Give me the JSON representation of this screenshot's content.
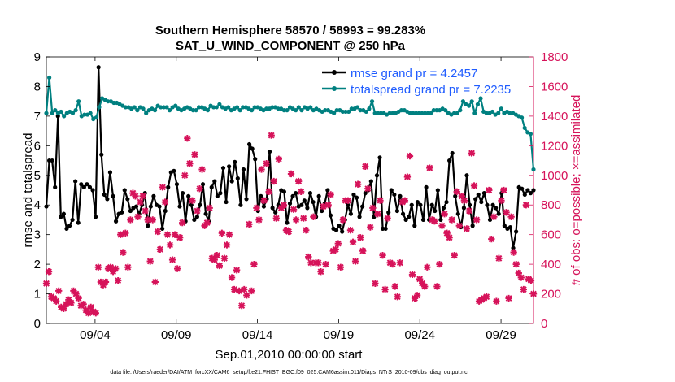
{
  "chart_data": {
    "type": "line",
    "title_line1": "Southern Hemisphere 58570 / 58993 = 99.283%",
    "title_line2": "SAT_U_WIND_COMPONENT @ 250 hPa",
    "xlabel": "Sep.01,2010 00:00:00 start",
    "ylabel_left": "rmse and totalspread",
    "ylabel_right": "# of obs: o=possible; ×=assimilated",
    "xlim": [
      0,
      60
    ],
    "ylim_left": [
      0,
      9
    ],
    "ylim_right": [
      0,
      1800
    ],
    "x_ticks": [
      {
        "x": 6,
        "label": "09/04"
      },
      {
        "x": 16,
        "label": "09/09"
      },
      {
        "x": 26,
        "label": "09/14"
      },
      {
        "x": 36,
        "label": "09/19"
      },
      {
        "x": 46,
        "label": "09/24"
      },
      {
        "x": 56,
        "label": "09/29"
      }
    ],
    "y_ticks_left": [
      "0",
      "1",
      "2",
      "3",
      "4",
      "5",
      "6",
      "7",
      "8",
      "9"
    ],
    "y_ticks_right": [
      "0",
      "200",
      "400",
      "600",
      "800",
      "1000",
      "1200",
      "1400",
      "1600",
      "1800"
    ],
    "grid": false,
    "legend_position": "top-right",
    "colors": {
      "rmse": "#000000",
      "spread": "#008080",
      "obs": "#d6135a",
      "right_axis": "#d6135a",
      "legend_text": "#1f5cff"
    },
    "series": [
      {
        "name": "rmse grand pr = 4.2457",
        "axis": "left",
        "marker": "circle",
        "values": [
          3.95,
          5.5,
          5.5,
          4.6,
          7.0,
          3.6,
          3.7,
          3.2,
          3.3,
          3.5,
          4.8,
          3.4,
          4.7,
          4.6,
          4.7,
          4.6,
          4.5,
          3.6,
          8.65,
          5.7,
          4.35,
          4.2,
          5.1,
          4.3,
          3.45,
          3.7,
          3.75,
          4.5,
          4.2,
          3.8,
          3.9,
          3.95,
          3.7,
          4.0,
          4.4,
          3.3,
          3.95,
          4.3,
          4.0,
          3.95,
          3.2,
          3.8,
          4.6,
          5.1,
          5.15,
          4.7,
          3.95,
          4.4,
          3.45,
          4.3,
          4.0,
          3.5,
          3.6,
          4.0,
          4.7,
          3.7,
          3.45,
          4.6,
          4.8,
          4.3,
          4.4,
          5.25,
          4.1,
          5.3,
          4.8,
          5.45,
          4.9,
          4.0,
          5.2,
          4.2,
          6.05,
          5.9,
          5.55,
          3.8,
          4.3,
          3.95,
          4.2,
          5.8,
          3.9,
          3.75,
          4.0,
          4.5,
          4.45,
          3.4,
          4.05,
          4.3,
          4.4,
          3.95,
          4.0,
          4.15,
          3.9,
          4.4,
          4.1,
          3.6,
          4.3,
          3.8,
          4.05,
          4.5,
          3.65,
          3.2,
          3.15,
          3.3,
          3.1,
          3.5,
          4.0,
          3.7,
          4.35,
          4.25,
          3.6,
          3.95,
          4.4,
          4.5,
          4.8,
          3.6,
          5.0,
          5.6,
          3.2,
          3.2,
          3.75,
          4.5,
          4.35,
          3.8,
          4.3,
          3.7,
          3.5,
          3.6,
          4.0,
          3.3,
          4.1,
          4.0,
          3.5,
          4.6,
          3.5,
          4.0,
          3.8,
          4.5,
          3.5,
          3.9,
          4.1,
          5.5,
          5.75,
          4.3,
          3.7,
          3.25,
          3.9,
          5.0,
          4.0,
          3.3,
          4.2,
          4.35,
          4.1,
          4.4,
          4.0,
          3.5,
          4.0,
          3.9,
          3.7,
          4.4,
          3.3,
          3.2,
          3.25,
          2.55,
          3.1,
          4.6,
          4.55,
          4.35,
          4.5,
          4.4,
          4.5
        ]
      },
      {
        "name": "totalspread grand pr = 7.2235",
        "axis": "left",
        "marker": "circle",
        "values": [
          7.1,
          8.3,
          7.1,
          7.2,
          7.1,
          7.15,
          7.0,
          7.1,
          7.15,
          7.1,
          7.2,
          7.5,
          7.0,
          7.05,
          7.05,
          7.1,
          6.9,
          6.95,
          7.3,
          7.6,
          7.55,
          7.5,
          7.5,
          7.45,
          7.45,
          7.4,
          7.35,
          7.3,
          7.3,
          7.25,
          7.3,
          7.2,
          7.3,
          7.25,
          7.1,
          7.2,
          7.25,
          7.2,
          7.35,
          7.3,
          7.3,
          7.3,
          7.2,
          7.3,
          7.35,
          7.25,
          7.2,
          7.25,
          7.3,
          7.25,
          7.2,
          7.2,
          7.3,
          7.3,
          7.25,
          7.2,
          7.35,
          7.3,
          7.3,
          7.4,
          7.3,
          7.25,
          7.3,
          7.2,
          7.25,
          7.3,
          7.2,
          7.3,
          7.3,
          7.25,
          7.2,
          7.3,
          7.3,
          7.25,
          7.2,
          7.25,
          7.25,
          7.3,
          7.3,
          7.25,
          7.25,
          7.2,
          7.2,
          7.3,
          7.25,
          7.2,
          7.3,
          7.2,
          7.3,
          7.25,
          7.3,
          7.2,
          7.25,
          7.2,
          7.15,
          7.2,
          7.2,
          7.15,
          7.1,
          7.2,
          7.2,
          7.15,
          7.15,
          7.15,
          7.25,
          7.25,
          7.3,
          7.2,
          7.2,
          7.15,
          7.25,
          7.5,
          7.1,
          7.1,
          7.1,
          7.1,
          7.05,
          7.1,
          7.1,
          7.1,
          7.15,
          7.2,
          7.2,
          7.15,
          7.1,
          7.1,
          7.1,
          7.1,
          7.1,
          7.1,
          7.1,
          7.1,
          7.2,
          7.2,
          7.2,
          7.25,
          7.2,
          7.1,
          7.05,
          7.1,
          7.1,
          7.2,
          7.5,
          7.4,
          7.35,
          7.5,
          7.1,
          7.4,
          7.6,
          7.15,
          7.1,
          7.1,
          7.15,
          7.05,
          7.1,
          7.25,
          7.1,
          7.15,
          7.1,
          7.1,
          7.05,
          7.0,
          6.95,
          6.6,
          6.45,
          6.4,
          5.2
        ]
      },
      {
        "name": "obs assimilated",
        "axis": "right",
        "marker": "x",
        "values": [
          270,
          350,
          180,
          170,
          150,
          220,
          110,
          100,
          130,
          160,
          140,
          220,
          200,
          170,
          120,
          130,
          90,
          70,
          110,
          80,
          70,
          380,
          280,
          260,
          280,
          370,
          380,
          350,
          370,
          290,
          600,
          480,
          610,
          380,
          700,
          880,
          860,
          720,
          820,
          860,
          760,
          700,
          420,
          700,
          280,
          620,
          500,
          920,
          820,
          600,
          530,
          430,
          600,
          370,
          580,
          680,
          1000,
          1250,
          1080,
          830,
          1140,
          760,
          910,
          1040,
          660,
          680,
          780,
          440,
          430,
          460,
          390,
          610,
          440,
          530,
          600,
          310,
          230,
          360,
          220,
          120,
          230,
          190,
          670,
          220,
          400,
          780,
          700,
          1040,
          830,
          1080,
          890,
          1270,
          960,
          710,
          1110,
          780,
          800,
          630,
          620,
          1010,
          770,
          700,
          960,
          890,
          710,
          630,
          450,
          410,
          720,
          410,
          410,
          350,
          790,
          400,
          800,
          870,
          490,
          500,
          540,
          380,
          700,
          830,
          830,
          630,
          550,
          420,
          940,
          580,
          490,
          1060,
          910,
          650,
          780,
          270,
          740,
          830,
          460,
          230,
          710,
          410,
          400,
          250,
          180,
          410,
          820,
          830,
          990,
          1130,
          330,
          170,
          190,
          300,
          270,
          250,
          380,
          1050,
          700,
          690,
          250,
          400,
          660,
          740,
          610,
          580,
          700,
          460,
          890,
          660,
          860,
          830,
          640,
          760,
          1150,
          930,
          700,
          150,
          160,
          170,
          180,
          900,
          570,
          720,
          150,
          440,
          830,
          900,
          750,
          170,
          720,
          480,
          400,
          340,
          310,
          230,
          800,
          300,
          290,
          200
        ]
      }
    ],
    "legend": [
      {
        "label": "rmse grand pr = 4.2457"
      },
      {
        "label": "totalspread grand pr = 7.2235"
      }
    ],
    "footnote": "data file: /Users/raeder/DAI/ATM_forcXX/CAM6_setup/f.e21.FHIST_BGC.f09_025.CAM6assim.011/Diags_NTrS_2010-09/obs_diag_output.nc"
  }
}
